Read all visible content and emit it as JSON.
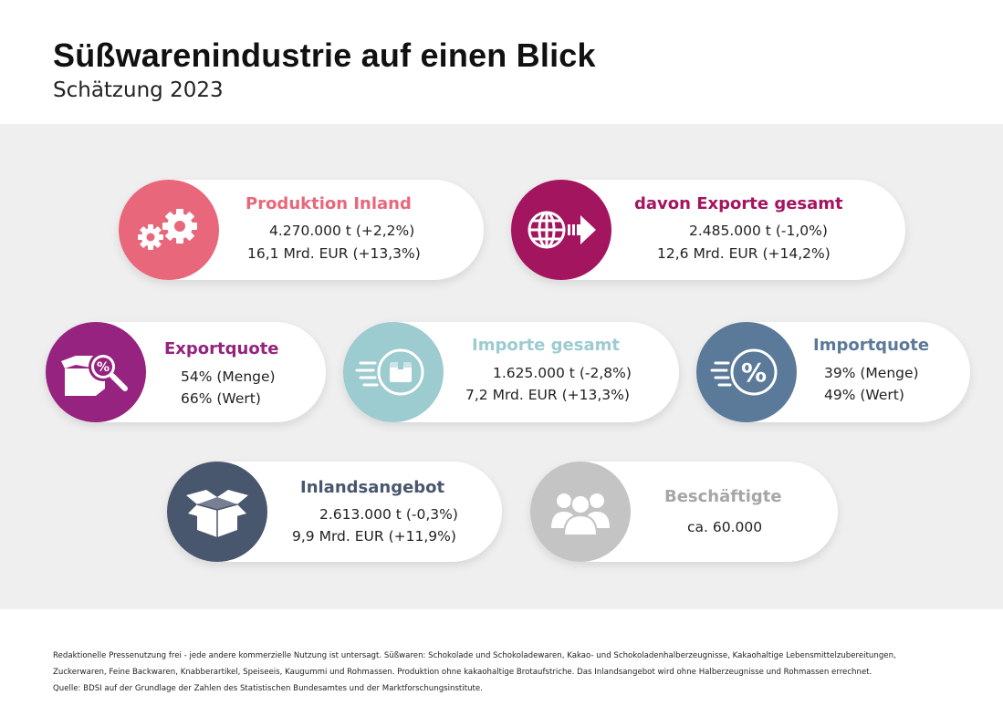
{
  "header": {
    "title": "Süßwarenindustrie auf einen Blick",
    "subtitle": "Schätzung 2023"
  },
  "colors": {
    "produktion": "#e9677b",
    "exporte": "#a3155f",
    "exportquote": "#95237f",
    "importe": "#9ccbd0",
    "importquote": "#5b7a99",
    "inlandsangebot": "#48566e",
    "beschaeftigte": "#c4c4c4",
    "beschaeftigte_title": "#a6a6a6"
  },
  "cards": {
    "produktion": {
      "title": "Produktion Inland",
      "line1": "4.270.000 t (+2,2%)",
      "line2": "16,1 Mrd. EUR (+13,3%)",
      "icon": "gears-icon"
    },
    "exporte": {
      "title": "davon Exporte gesamt",
      "line1": "2.485.000 t (-1,0%)",
      "line2": "12,6 Mrd. EUR (+14,2%)",
      "icon": "globe-arrow-icon"
    },
    "exportquote": {
      "title": "Exportquote",
      "line1": "54% (Menge)",
      "line2": "66% (Wert)",
      "icon": "box-magnifier-percent-icon"
    },
    "importe": {
      "title": "Importe gesamt",
      "line1": "1.625.000 t (-2,8%)",
      "line2": "7,2 Mrd. EUR (+13,3%)",
      "icon": "moving-box-icon"
    },
    "importquote": {
      "title": "Importquote",
      "line1": "39% (Menge)",
      "line2": "49% (Wert)",
      "icon": "moving-percent-icon"
    },
    "inlandsangebot": {
      "title": "Inlandsangebot",
      "line1": "2.613.000 t (-0,3%)",
      "line2": "9,9 Mrd. EUR (+11,9%)",
      "icon": "open-box-icon"
    },
    "beschaeftigte": {
      "title": "Beschäftigte",
      "line1": "ca. 60.000",
      "icon": "people-icon"
    }
  },
  "footer": {
    "line1": "Redaktionelle Pressenutzung frei - jede andere kommerzielle Nutzung ist untersagt. Süßwaren: Schokolade und Schokoladewaren, Kakao- und Schokoladenhalberzeugnisse, Kakaohaltige Lebensmittelzubereitungen,",
    "line2": "Zuckerwaren, Feine Backwaren, Knabberartikel, Speiseeis, Kaugummi und Rohmassen. Produktion ohne kakaohaltige Brotaufstriche. Das Inlandsangebot wird ohne Halberzeugnisse und Rohmassen errechnet.",
    "line3": "Quelle: BDSI auf der Grundlage der Zahlen des Statistischen Bundesamtes und der Marktforschungsinstitute."
  }
}
